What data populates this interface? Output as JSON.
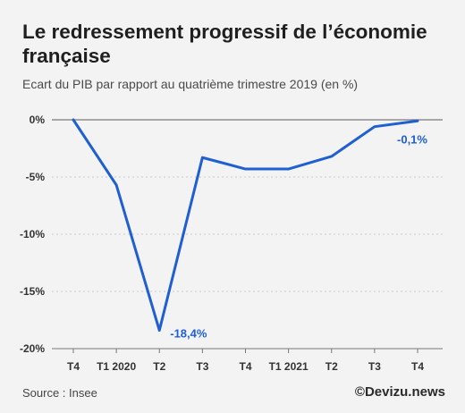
{
  "title": "Le redressement progressif de l’économie française",
  "subtitle": "Ecart du PIB par rapport au quatrième trimestre 2019 (en %)",
  "source": "Source : Insee",
  "brand": "©Devizu.news",
  "colors": {
    "line": "#1f5fcf",
    "label": "#1f5fcf",
    "axis": "#777777",
    "grid": "#bdbdbd"
  },
  "chart_data": {
    "type": "line",
    "categories": [
      "T4",
      "T1 2020",
      "T2",
      "T3",
      "T4",
      "T1 2021",
      "T2",
      "T3",
      "T4"
    ],
    "series": [
      {
        "values": [
          0,
          -5.7,
          -18.4,
          -3.3,
          -4.3,
          -4.3,
          -3.2,
          -0.6,
          -0.1
        ]
      }
    ],
    "yticks": [
      "0%",
      "-5%",
      "-10%",
      "-15%",
      "-20%"
    ],
    "ylim": [
      -20,
      0
    ],
    "annotations": [
      {
        "index": 2,
        "text": "-18,4%"
      },
      {
        "index": 8,
        "text": "-0,1%"
      }
    ],
    "grid": "horizontal",
    "legend": "none"
  }
}
